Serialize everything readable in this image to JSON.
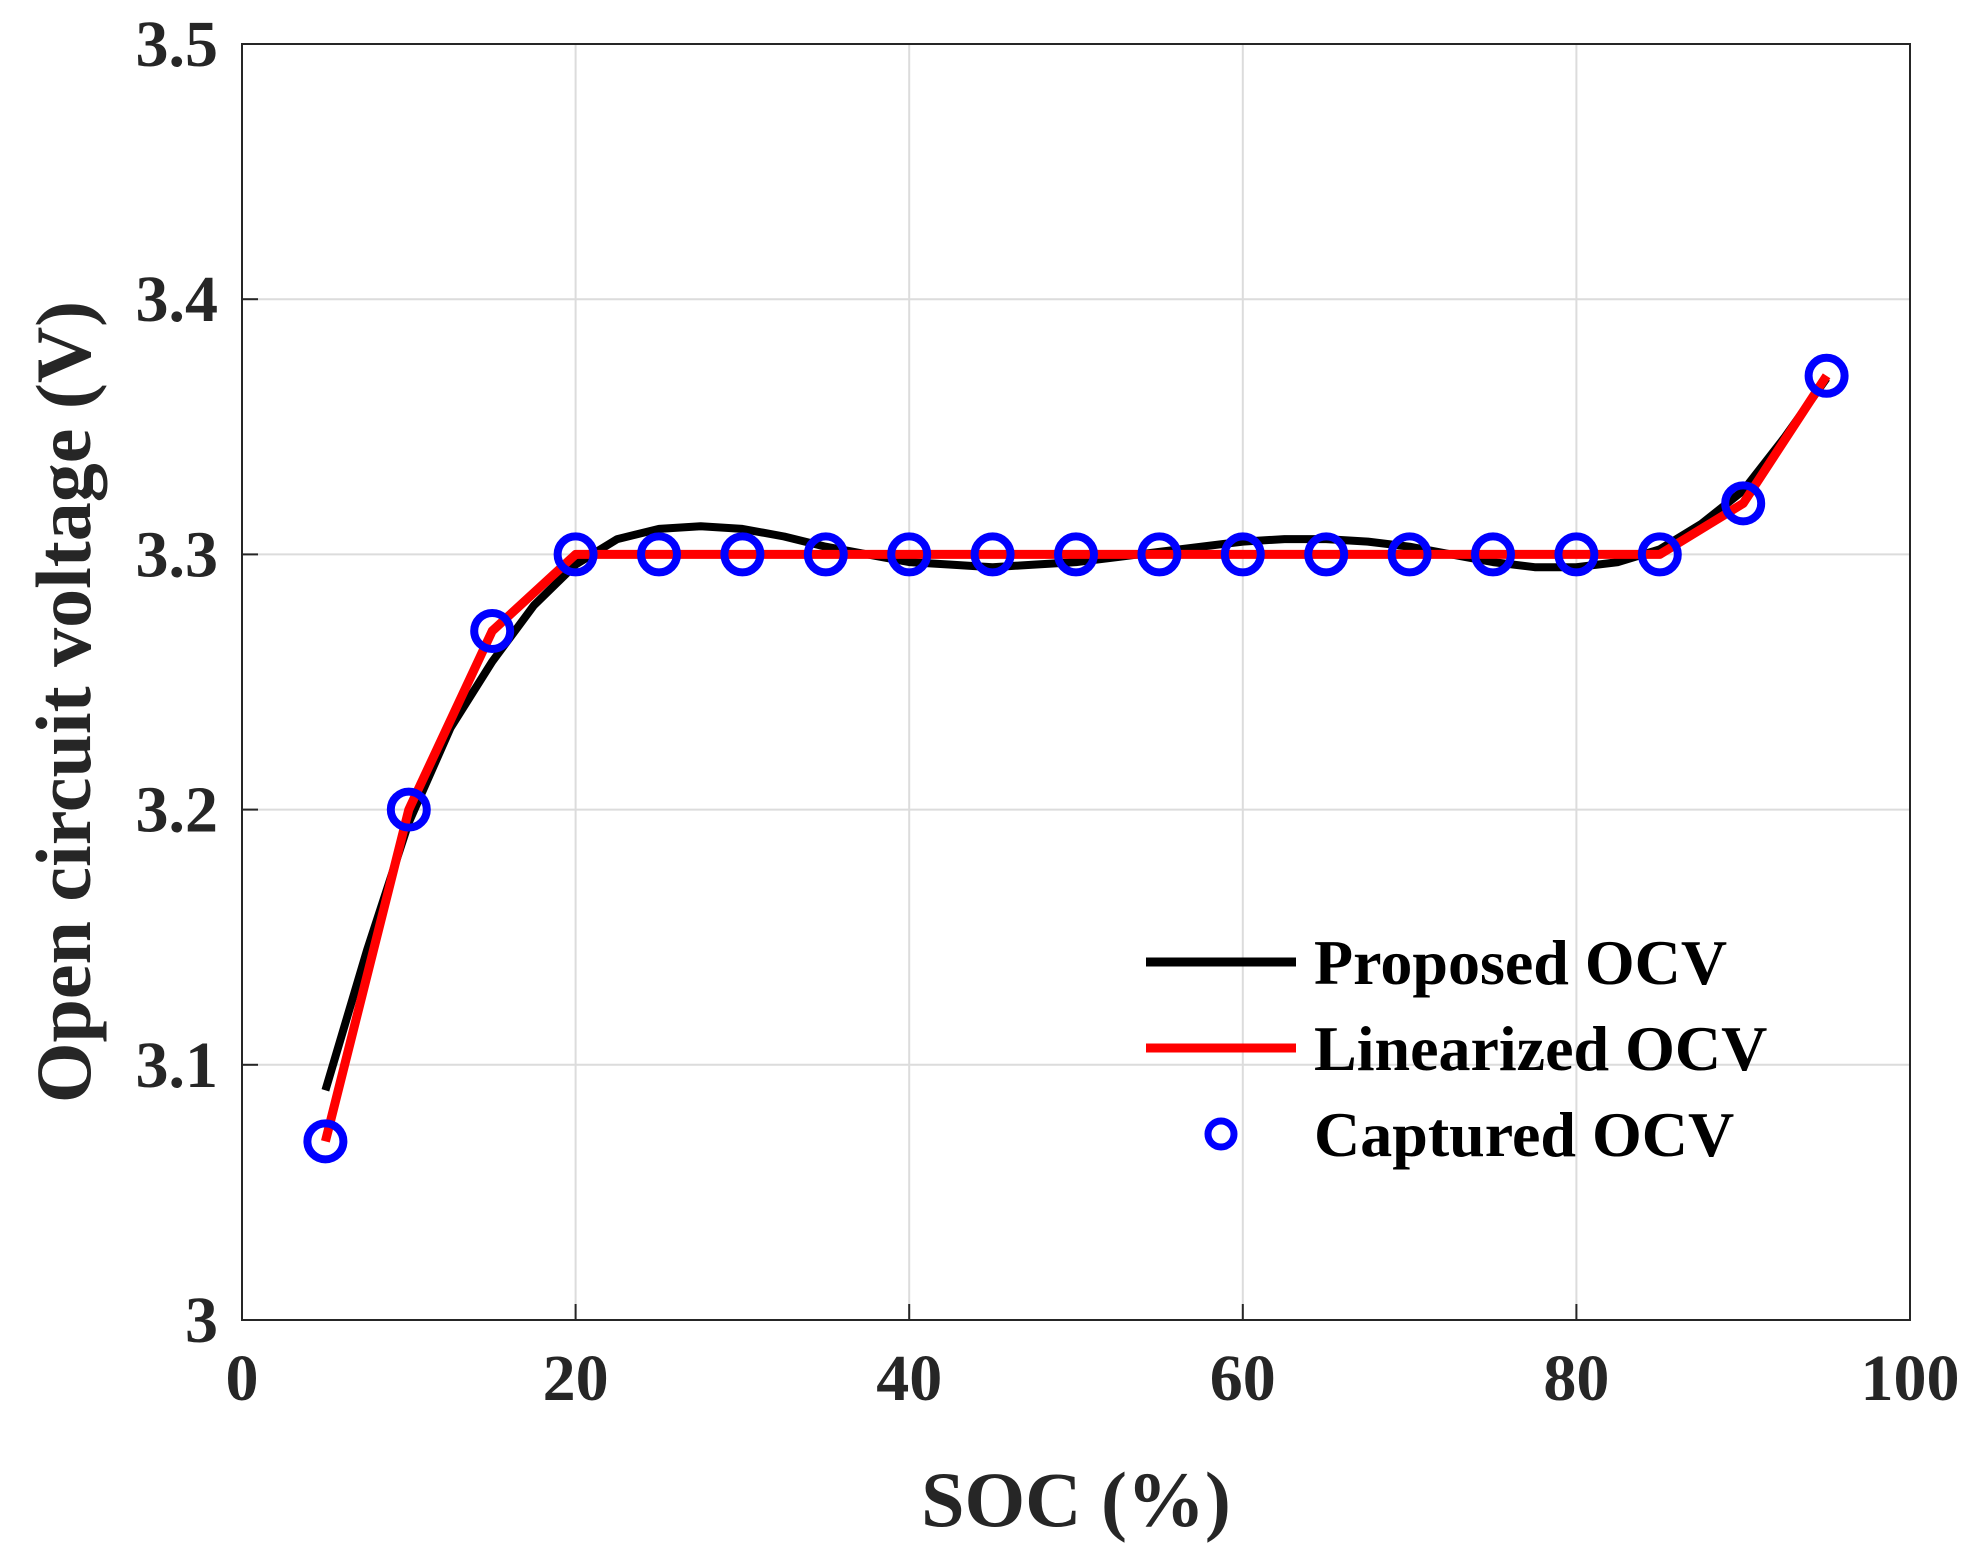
{
  "chart_data": {
    "type": "line",
    "title": "",
    "xlabel": "SOC (%)",
    "ylabel": "Open circuit voltage (V)",
    "xlim": [
      0,
      100
    ],
    "ylim": [
      3.0,
      3.5
    ],
    "xticks": [
      "0",
      "20",
      "40",
      "60",
      "80",
      "100"
    ],
    "yticks": [
      "3",
      "3.1",
      "3.2",
      "3.3",
      "3.4",
      "3.5"
    ],
    "grid": true,
    "legend_position": "bottom-right",
    "series": [
      {
        "name": "Proposed OCV",
        "style": "line",
        "color": "#000000",
        "x": [
          5,
          7.5,
          10,
          12.5,
          15,
          17.5,
          20,
          22.5,
          25,
          27.5,
          30,
          32.5,
          35,
          37.5,
          40,
          42.5,
          45,
          47.5,
          50,
          52.5,
          55,
          57.5,
          60,
          62.5,
          65,
          67.5,
          70,
          72.5,
          75,
          77.5,
          80,
          82.5,
          85,
          87.5,
          90,
          92.5,
          95
        ],
        "y": [
          3.09,
          3.145,
          3.195,
          3.232,
          3.258,
          3.28,
          3.296,
          3.306,
          3.31,
          3.311,
          3.31,
          3.307,
          3.303,
          3.3,
          3.297,
          3.296,
          3.295,
          3.296,
          3.297,
          3.299,
          3.301,
          3.303,
          3.305,
          3.306,
          3.306,
          3.305,
          3.303,
          3.3,
          3.297,
          3.295,
          3.295,
          3.297,
          3.302,
          3.312,
          3.325,
          3.346,
          3.369
        ]
      },
      {
        "name": "Linearized OCV",
        "style": "line",
        "color": "#ff0000",
        "x": [
          5,
          10,
          15,
          20,
          25,
          30,
          35,
          40,
          45,
          50,
          55,
          60,
          65,
          70,
          75,
          80,
          85,
          90,
          95
        ],
        "y": [
          3.07,
          3.2,
          3.27,
          3.3,
          3.3,
          3.3,
          3.3,
          3.3,
          3.3,
          3.3,
          3.3,
          3.3,
          3.3,
          3.3,
          3.3,
          3.3,
          3.3,
          3.32,
          3.37
        ]
      },
      {
        "name": "Captured OCV",
        "style": "marker",
        "color": "#0000ff",
        "x": [
          5,
          10,
          15,
          20,
          25,
          30,
          35,
          40,
          45,
          50,
          55,
          60,
          65,
          70,
          75,
          80,
          85,
          90,
          95
        ],
        "y": [
          3.07,
          3.2,
          3.27,
          3.3,
          3.3,
          3.3,
          3.3,
          3.3,
          3.3,
          3.3,
          3.3,
          3.3,
          3.3,
          3.3,
          3.3,
          3.3,
          3.3,
          3.32,
          3.37
        ]
      }
    ]
  }
}
